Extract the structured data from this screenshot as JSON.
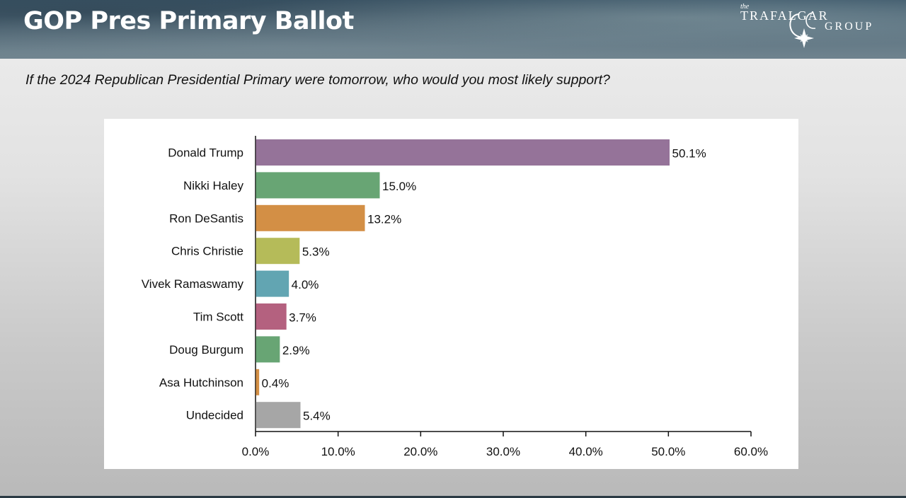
{
  "header": {
    "title": "GOP Pres Primary Ballot",
    "logo": {
      "small": "the",
      "line1": "TRAFALGAR",
      "line2": "GROUP"
    }
  },
  "question": "If the 2024 Republican Presidential Primary were tomorrow, who would you most likely support?",
  "chart_data": {
    "type": "bar",
    "orientation": "horizontal",
    "title": "",
    "xlabel": "",
    "ylabel": "",
    "xlim": [
      0,
      60
    ],
    "x_ticks": [
      0,
      10,
      20,
      30,
      40,
      50,
      60
    ],
    "x_tick_labels": [
      "0.0%",
      "10.0%",
      "20.0%",
      "30.0%",
      "40.0%",
      "50.0%",
      "60.0%"
    ],
    "grid": false,
    "categories": [
      "Donald Trump",
      "Nikki Haley",
      "Ron DeSantis",
      "Chris Christie",
      "Vivek Ramaswamy",
      "Tim Scott",
      "Doug Burgum",
      "Asa Hutchinson",
      "Undecided"
    ],
    "values": [
      50.1,
      15.0,
      13.2,
      5.3,
      4.0,
      3.7,
      2.9,
      0.4,
      5.4
    ],
    "value_labels": [
      "50.1%",
      "15.0%",
      "13.2%",
      "5.3%",
      "4.0%",
      "3.7%",
      "2.9%",
      "0.4%",
      "5.4%"
    ],
    "colors": [
      "#957399",
      "#68a574",
      "#d38f45",
      "#b5bb59",
      "#62a5b2",
      "#b4617f",
      "#68a574",
      "#d38f45",
      "#a6a6a6"
    ]
  }
}
